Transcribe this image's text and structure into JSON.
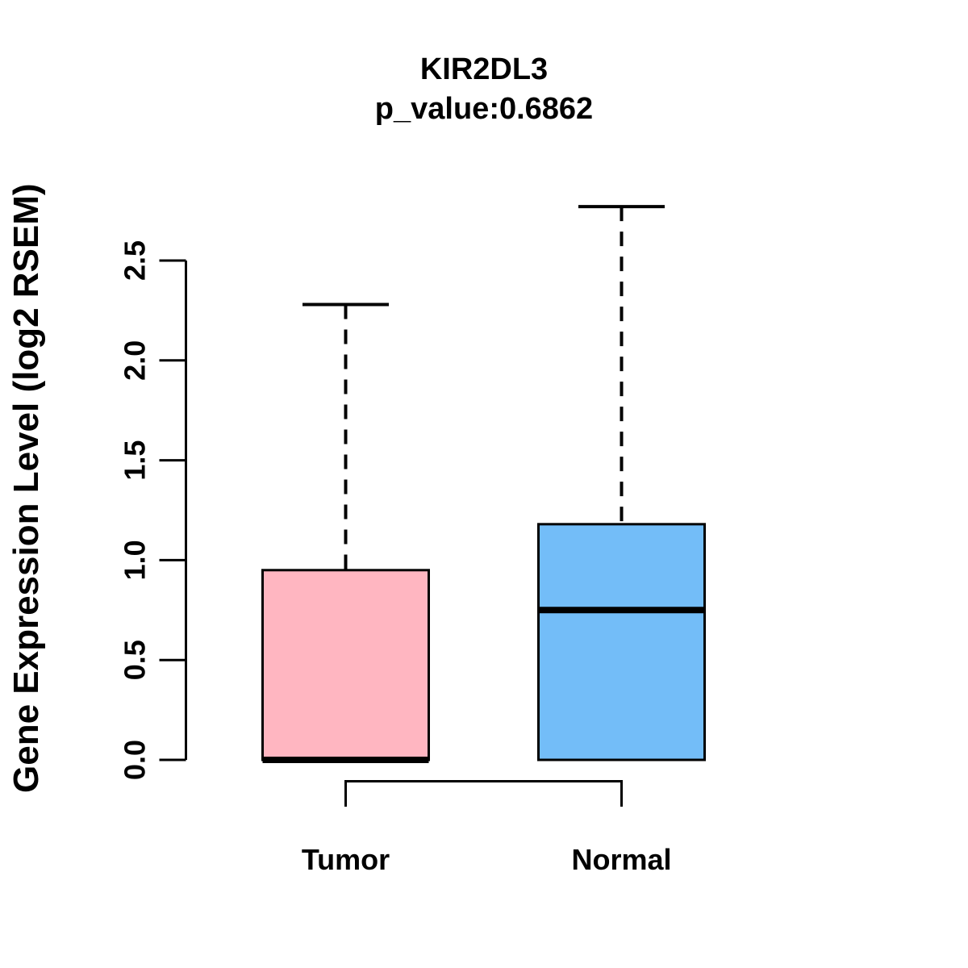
{
  "page": {
    "background_color": "#FFFFFF",
    "text_color": "#000000"
  },
  "chart_data": {
    "type": "boxplot",
    "title": "KIR2DL3",
    "subtitle": "p_value:0.6862",
    "p_value": "0.6862",
    "gene": "KIR2DL3",
    "ylabel": "Gene Expression Level (log2 RSEM)",
    "xlabel": "",
    "ylim": [
      0,
      2.5
    ],
    "yticks": [
      "0.0",
      "0.5",
      "1.0",
      "1.5",
      "2.0",
      "2.5"
    ],
    "ytick_values": [
      0,
      0.5,
      1.0,
      1.5,
      2.0,
      2.5
    ],
    "grid": false,
    "legend": "none",
    "categories": [
      "Tumor",
      "Normal"
    ],
    "series": [
      {
        "name": "Tumor",
        "min": 0,
        "q1": 0,
        "median": 0,
        "q3": 0.95,
        "max": 2.28,
        "fill_color": "#FFB6C1"
      },
      {
        "name": "Normal",
        "min": 0,
        "q1": 0,
        "median": 0.75,
        "q3": 1.18,
        "max": 2.77,
        "fill_color": "#73BDF8"
      }
    ],
    "comparison_bracket": {
      "from": "Tumor",
      "to": "Normal"
    },
    "line_color": "#000000",
    "whisker_style": "dashed"
  }
}
